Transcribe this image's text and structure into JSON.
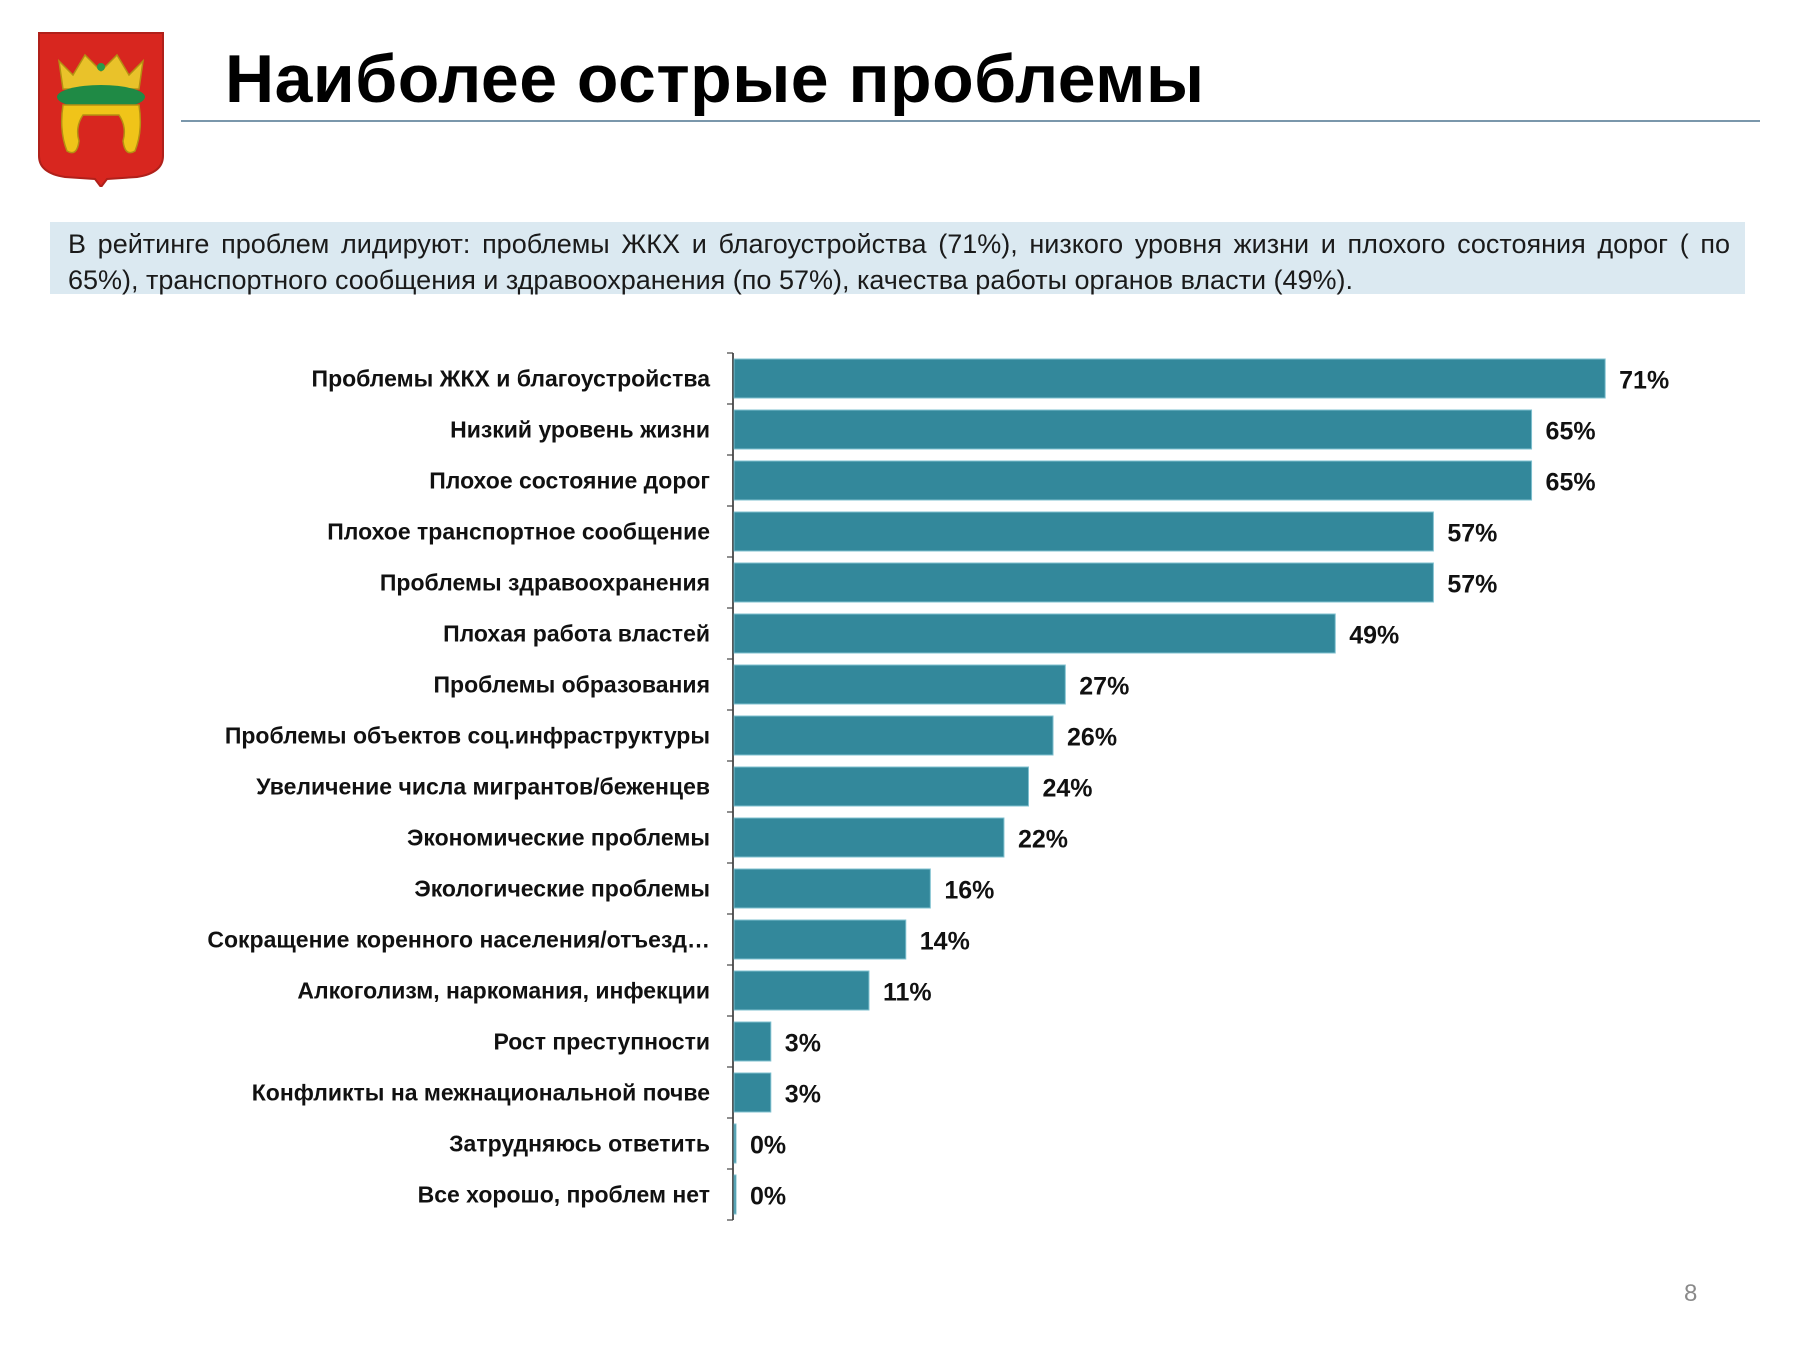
{
  "header": {
    "title": "Наиболее острые проблемы",
    "emblem": "coat-of-arms-tver"
  },
  "summary": {
    "text": "В рейтинге проблем лидируют: проблемы ЖКХ и благоустройства (71%), низкого уровня жизни и плохого состояния дорог ( по 65%), транспортного сообщения и здравоохранения (по 57%), качества работы органов власти (49%)."
  },
  "chart_data": {
    "type": "bar",
    "orientation": "horizontal",
    "categories": [
      "Проблемы ЖКХ и благоустройства",
      "Низкий уровень жизни",
      "Плохое состояние дорог",
      "Плохое транспортное сообщение",
      "Проблемы здравоохранения",
      "Плохая работа властей",
      "Проблемы образования",
      "Проблемы объектов соц.инфраструктуры",
      "Увеличение числа мигрантов/беженцев",
      "Экономические проблемы",
      "Экологические проблемы",
      "Сокращение коренного населения/отъезд…",
      "Алкоголизм, наркомания, инфекции",
      "Рост преступности",
      "Конфликты на межнациональной почве",
      "Затрудняюсь ответить",
      "Все хорошо, проблем нет"
    ],
    "values": [
      71,
      65,
      65,
      57,
      57,
      49,
      27,
      26,
      24,
      22,
      16,
      14,
      11,
      3,
      3,
      0,
      0
    ],
    "data_labels": [
      "71%",
      "65%",
      "65%",
      "57%",
      "57%",
      "49%",
      "27%",
      "26%",
      "24%",
      "22%",
      "16%",
      "14%",
      "11%",
      "3%",
      "3%",
      "0%",
      "0%"
    ],
    "xlim": [
      0,
      75
    ],
    "grid": false,
    "legend": "none",
    "bar_color": "#33889b"
  },
  "footer": {
    "page_number": "8"
  }
}
